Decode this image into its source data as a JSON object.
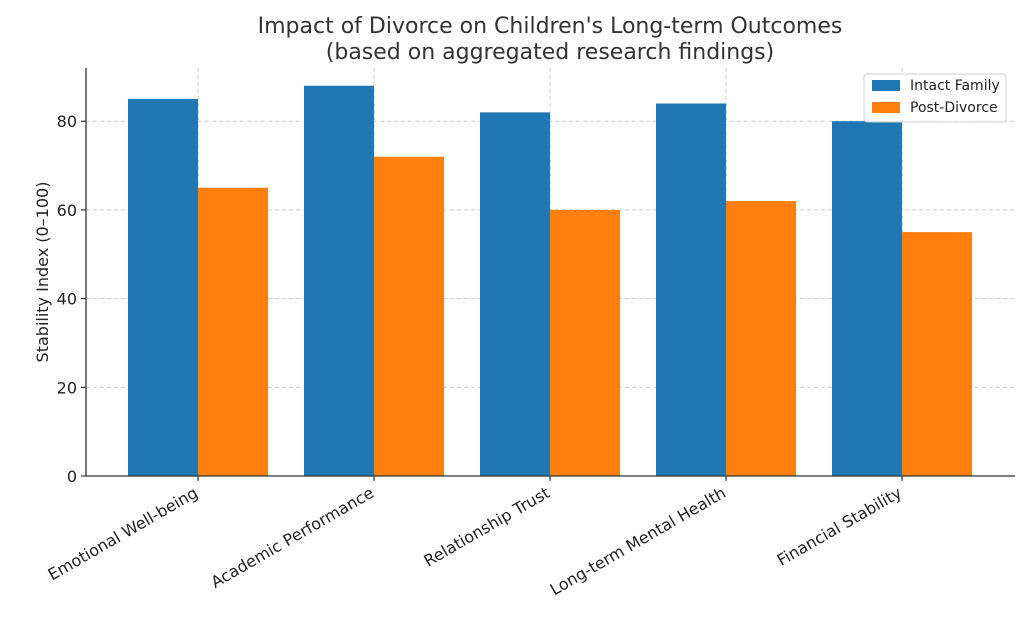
{
  "chart_data": {
    "type": "bar",
    "title": [
      "Impact of Divorce on Children's Long-term Outcomes",
      "(based on aggregated research findings)"
    ],
    "xlabel": "",
    "ylabel": "Stability Index (0–100)",
    "categories": [
      "Emotional Well-being",
      "Academic Performance",
      "Relationship Trust",
      "Long-term Mental Health",
      "Financial Stability"
    ],
    "series": [
      {
        "name": "Intact Family",
        "values": [
          85,
          88,
          82,
          84,
          80
        ],
        "color": "#1f77b4"
      },
      {
        "name": "Post-Divorce",
        "values": [
          65,
          72,
          60,
          62,
          55
        ],
        "color": "#ff7f0e"
      }
    ],
    "ylim": [
      0,
      92
    ],
    "yticks": [
      0,
      20,
      40,
      60,
      80
    ],
    "grid": true,
    "legend_position": "top-right"
  }
}
